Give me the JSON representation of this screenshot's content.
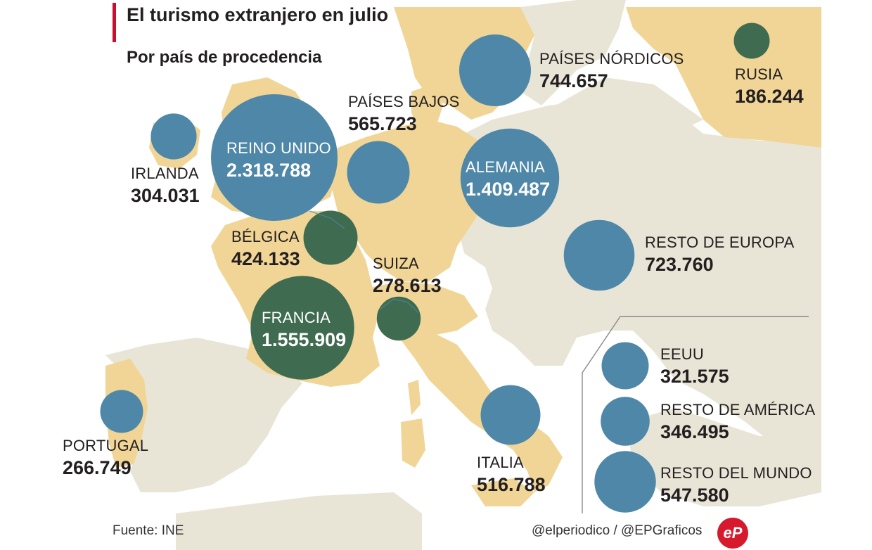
{
  "header": {
    "title": "El turismo extranjero en julio",
    "subtitle": "Por país de procedencia"
  },
  "colors": {
    "highlight_land": "#f0d596",
    "other_land": "#e9e5d6",
    "sea": "#ffffff",
    "bubble_blue": "#4e87a8",
    "bubble_green": "#3f6b50",
    "accent_bar": "#c8102e",
    "text": "#231f20"
  },
  "countries": [
    {
      "name": "REINO UNIDO",
      "value": "2.318.788",
      "visitors": 2318788,
      "color": "blue"
    },
    {
      "name": "FRANCIA",
      "value": "1.555.909",
      "visitors": 1555909,
      "color": "green"
    },
    {
      "name": "ALEMANIA",
      "value": "1.409.487",
      "visitors": 1409487,
      "color": "blue"
    },
    {
      "name": "PAÍSES NÓRDICOS",
      "value": "744.657",
      "visitors": 744657,
      "color": "blue"
    },
    {
      "name": "RESTO DE EUROPA",
      "value": "723.760",
      "visitors": 723760,
      "color": "blue"
    },
    {
      "name": "PAÍSES BAJOS",
      "value": "565.723",
      "visitors": 565723,
      "color": "blue"
    },
    {
      "name": "RESTO DEL MUNDO",
      "value": "547.580",
      "visitors": 547580,
      "color": "blue"
    },
    {
      "name": "ITALIA",
      "value": "516.788",
      "visitors": 516788,
      "color": "blue"
    },
    {
      "name": "BÉLGICA",
      "value": "424.133",
      "visitors": 424133,
      "color": "green"
    },
    {
      "name": "RESTO DE AMÉRICA",
      "value": "346.495",
      "visitors": 346495,
      "color": "blue"
    },
    {
      "name": "EEUU",
      "value": "321.575",
      "visitors": 321575,
      "color": "blue"
    },
    {
      "name": "IRLANDA",
      "value": "304.031",
      "visitors": 304031,
      "color": "blue"
    },
    {
      "name": "SUIZA",
      "value": "278.613",
      "visitors": 278613,
      "color": "green"
    },
    {
      "name": "PORTUGAL",
      "value": "266.749",
      "visitors": 266749,
      "color": "blue"
    },
    {
      "name": "RUSIA",
      "value": "186.244",
      "visitors": 186244,
      "color": "green"
    }
  ],
  "footer": {
    "source": "Fuente: INE",
    "credit": "@elperiodico / @EPGraficos",
    "logo": "eP"
  }
}
